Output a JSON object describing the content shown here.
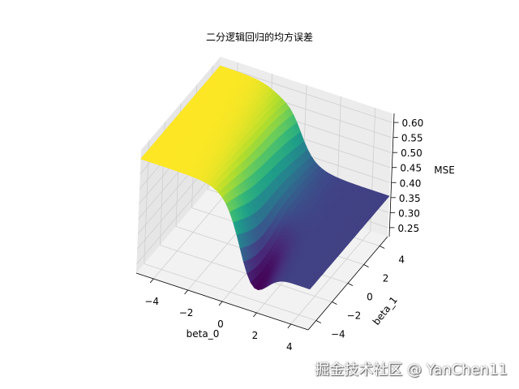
{
  "chart_data": {
    "type": "surface",
    "title": "二分逻辑回归的均方误差",
    "xlabel": "beta_0",
    "ylabel": "beta_1",
    "zlabel": "MSE",
    "xlim": [
      -5,
      5
    ],
    "ylim": [
      -5,
      5
    ],
    "zlim": [
      0.22,
      0.63
    ],
    "xticks": [
      "−4",
      "−2",
      "0",
      "2",
      "4"
    ],
    "xtick_values": [
      -4,
      -2,
      0,
      2,
      4
    ],
    "yticks": [
      "−4",
      "−2",
      "0",
      "2",
      "4"
    ],
    "ytick_values": [
      -4,
      -2,
      0,
      2,
      4
    ],
    "zticks": [
      "0.25",
      "0.30",
      "0.35",
      "0.40",
      "0.45",
      "0.50",
      "0.55",
      "0.60"
    ],
    "ztick_values": [
      0.25,
      0.3,
      0.35,
      0.4,
      0.45,
      0.5,
      0.55,
      0.6
    ],
    "colormap": "viridis",
    "grid": true
  },
  "watermark": "掘金技术社区 @ YanChen11"
}
